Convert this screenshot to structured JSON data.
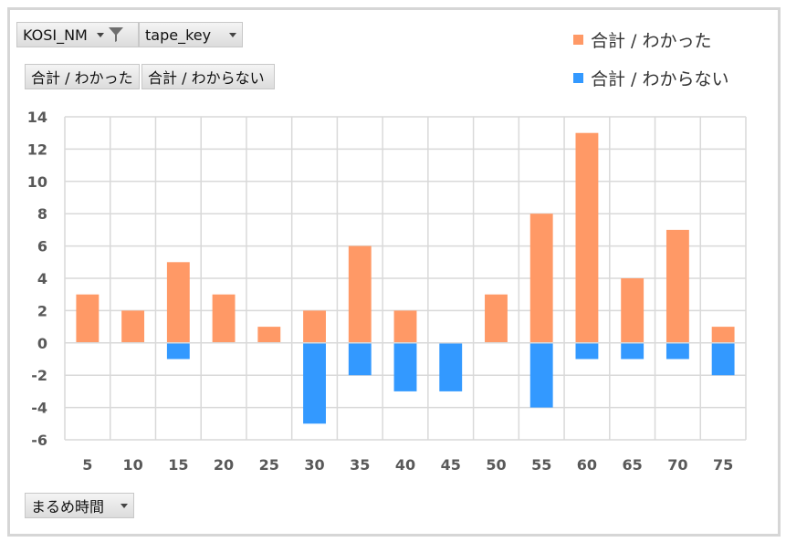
{
  "filters": {
    "kosi_nm": "KOSI_NM",
    "tape_key": "tape_key",
    "value1": "合計 / わかった",
    "value2": "合計 / わからない",
    "axis_field": "まるめ時間"
  },
  "icons": {
    "filter": "filter-icon",
    "dropdown": "dropdown-arrow-icon"
  },
  "chart_data": {
    "type": "bar",
    "stacked": true,
    "categories": [
      "5",
      "10",
      "15",
      "20",
      "25",
      "30",
      "35",
      "40",
      "45",
      "50",
      "55",
      "60",
      "65",
      "70",
      "75"
    ],
    "series": [
      {
        "name": "合計 / わかった",
        "color": "#ff9966",
        "values": [
          3,
          2,
          5,
          3,
          1,
          2,
          6,
          2,
          0,
          3,
          8,
          13,
          4,
          7,
          1
        ]
      },
      {
        "name": "合計 / わからない",
        "color": "#3399ff",
        "values": [
          0,
          0,
          -1,
          0,
          0,
          -5,
          -2,
          -3,
          -3,
          0,
          -4,
          -1,
          -1,
          -1,
          -2
        ]
      }
    ],
    "yticks": [
      14,
      12,
      10,
      8,
      6,
      4,
      2,
      0,
      -2,
      -4,
      -6
    ],
    "ylim": [
      -6,
      14
    ],
    "grid": true,
    "legend": "top-right"
  }
}
